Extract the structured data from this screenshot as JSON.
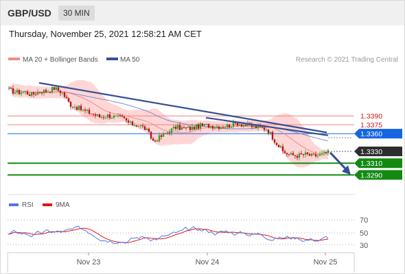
{
  "header": {
    "symbol": "GBP/USD",
    "timeframe": "30 MIN"
  },
  "timestamp": "Thursday, November 25, 2021 12:58:21 AM CET",
  "legend": {
    "ma20": "MA 20 + Bollinger Bands",
    "ma50": "MA 50",
    "copyright": "Research © 2021 Trading Central"
  },
  "levels": [
    {
      "value": "1.3390",
      "style": "text-red"
    },
    {
      "value": "1.3375",
      "style": "text-red"
    },
    {
      "value": "1.3360",
      "style": "box-blue"
    },
    {
      "value": "1.3330",
      "style": "box-black"
    },
    {
      "value": "1.3310",
      "style": "box-green"
    },
    {
      "value": "1.3290",
      "style": "box-green"
    }
  ],
  "rsi_legend": {
    "rsi": "RSI",
    "ma": "9MA"
  },
  "rsi_ticks": [
    "70",
    "50",
    "30"
  ],
  "xaxis_ticks": [
    "Nov 23",
    "Nov 24",
    "Nov 25"
  ],
  "colors": {
    "bull": "#33a02c",
    "bear": "#b51414",
    "band": "#ffd6d6",
    "ma20": "#f28a8a",
    "ma50": "#7b8ccc",
    "trend": "#344f94",
    "blue": "#1565e0",
    "green": "#128a12",
    "red": "#f28080",
    "black": "#2d2d2d",
    "rsi": "#4a78e0",
    "rsi_ma": "#e01414"
  },
  "chart_data": {
    "type": "candlestick",
    "title": "GBP/USD",
    "interval": "30 MIN",
    "close_path": [
      1.3434,
      1.343,
      1.3431,
      1.3426,
      1.3432,
      1.3432,
      1.3437,
      1.343,
      1.341,
      1.3404,
      1.3398,
      1.3394,
      1.3388,
      1.3391,
      1.3388,
      1.3386,
      1.3376,
      1.3375,
      1.3368,
      1.3347,
      1.3355,
      1.3364,
      1.3371,
      1.3369,
      1.3369,
      1.3373,
      1.3374,
      1.3373,
      1.3372,
      1.3374,
      1.3378,
      1.3375,
      1.3372,
      1.337,
      1.3368,
      1.3348,
      1.333,
      1.3324,
      1.3323,
      1.3325,
      1.3322,
      1.3324,
      1.3328
    ],
    "ylim": [
      1.3258,
      1.3475
    ],
    "levels": [
      1.339,
      1.3375,
      1.336,
      1.333,
      1.331,
      1.329
    ],
    "series": [
      {
        "name": "MA 20 + Bollinger Bands"
      },
      {
        "name": "MA 50"
      }
    ],
    "rsi": {
      "legend": [
        "RSI",
        "9MA"
      ],
      "ticks": [
        70,
        50,
        30
      ]
    },
    "xticks": [
      "Nov 23",
      "Nov 24",
      "Nov 25"
    ]
  }
}
